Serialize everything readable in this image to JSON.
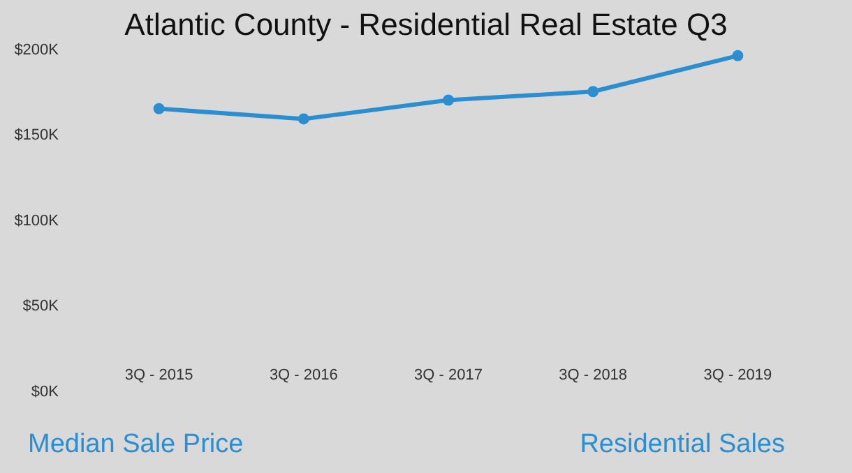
{
  "chart_data": {
    "type": "line",
    "title": "Atlantic County - Residential Real Estate Q3",
    "categories": [
      "3Q - 2015",
      "3Q - 2016",
      "3Q - 2017",
      "3Q - 2018",
      "3Q - 2019"
    ],
    "series": [
      {
        "color": "#2b8ed0",
        "values": [
          165000,
          159000,
          170000,
          175000,
          196000
        ]
      }
    ],
    "ylim": [
      0,
      200000
    ],
    "yticks": [
      {
        "value": 0,
        "label": "$0K"
      },
      {
        "value": 50000,
        "label": "$50K"
      },
      {
        "value": 100000,
        "label": "$100K"
      },
      {
        "value": 150000,
        "label": "$150K"
      },
      {
        "value": 200000,
        "label": "$200K"
      }
    ],
    "marker": "circle",
    "annotations": [
      "Median Sale Price",
      "Residential Sales"
    ]
  }
}
